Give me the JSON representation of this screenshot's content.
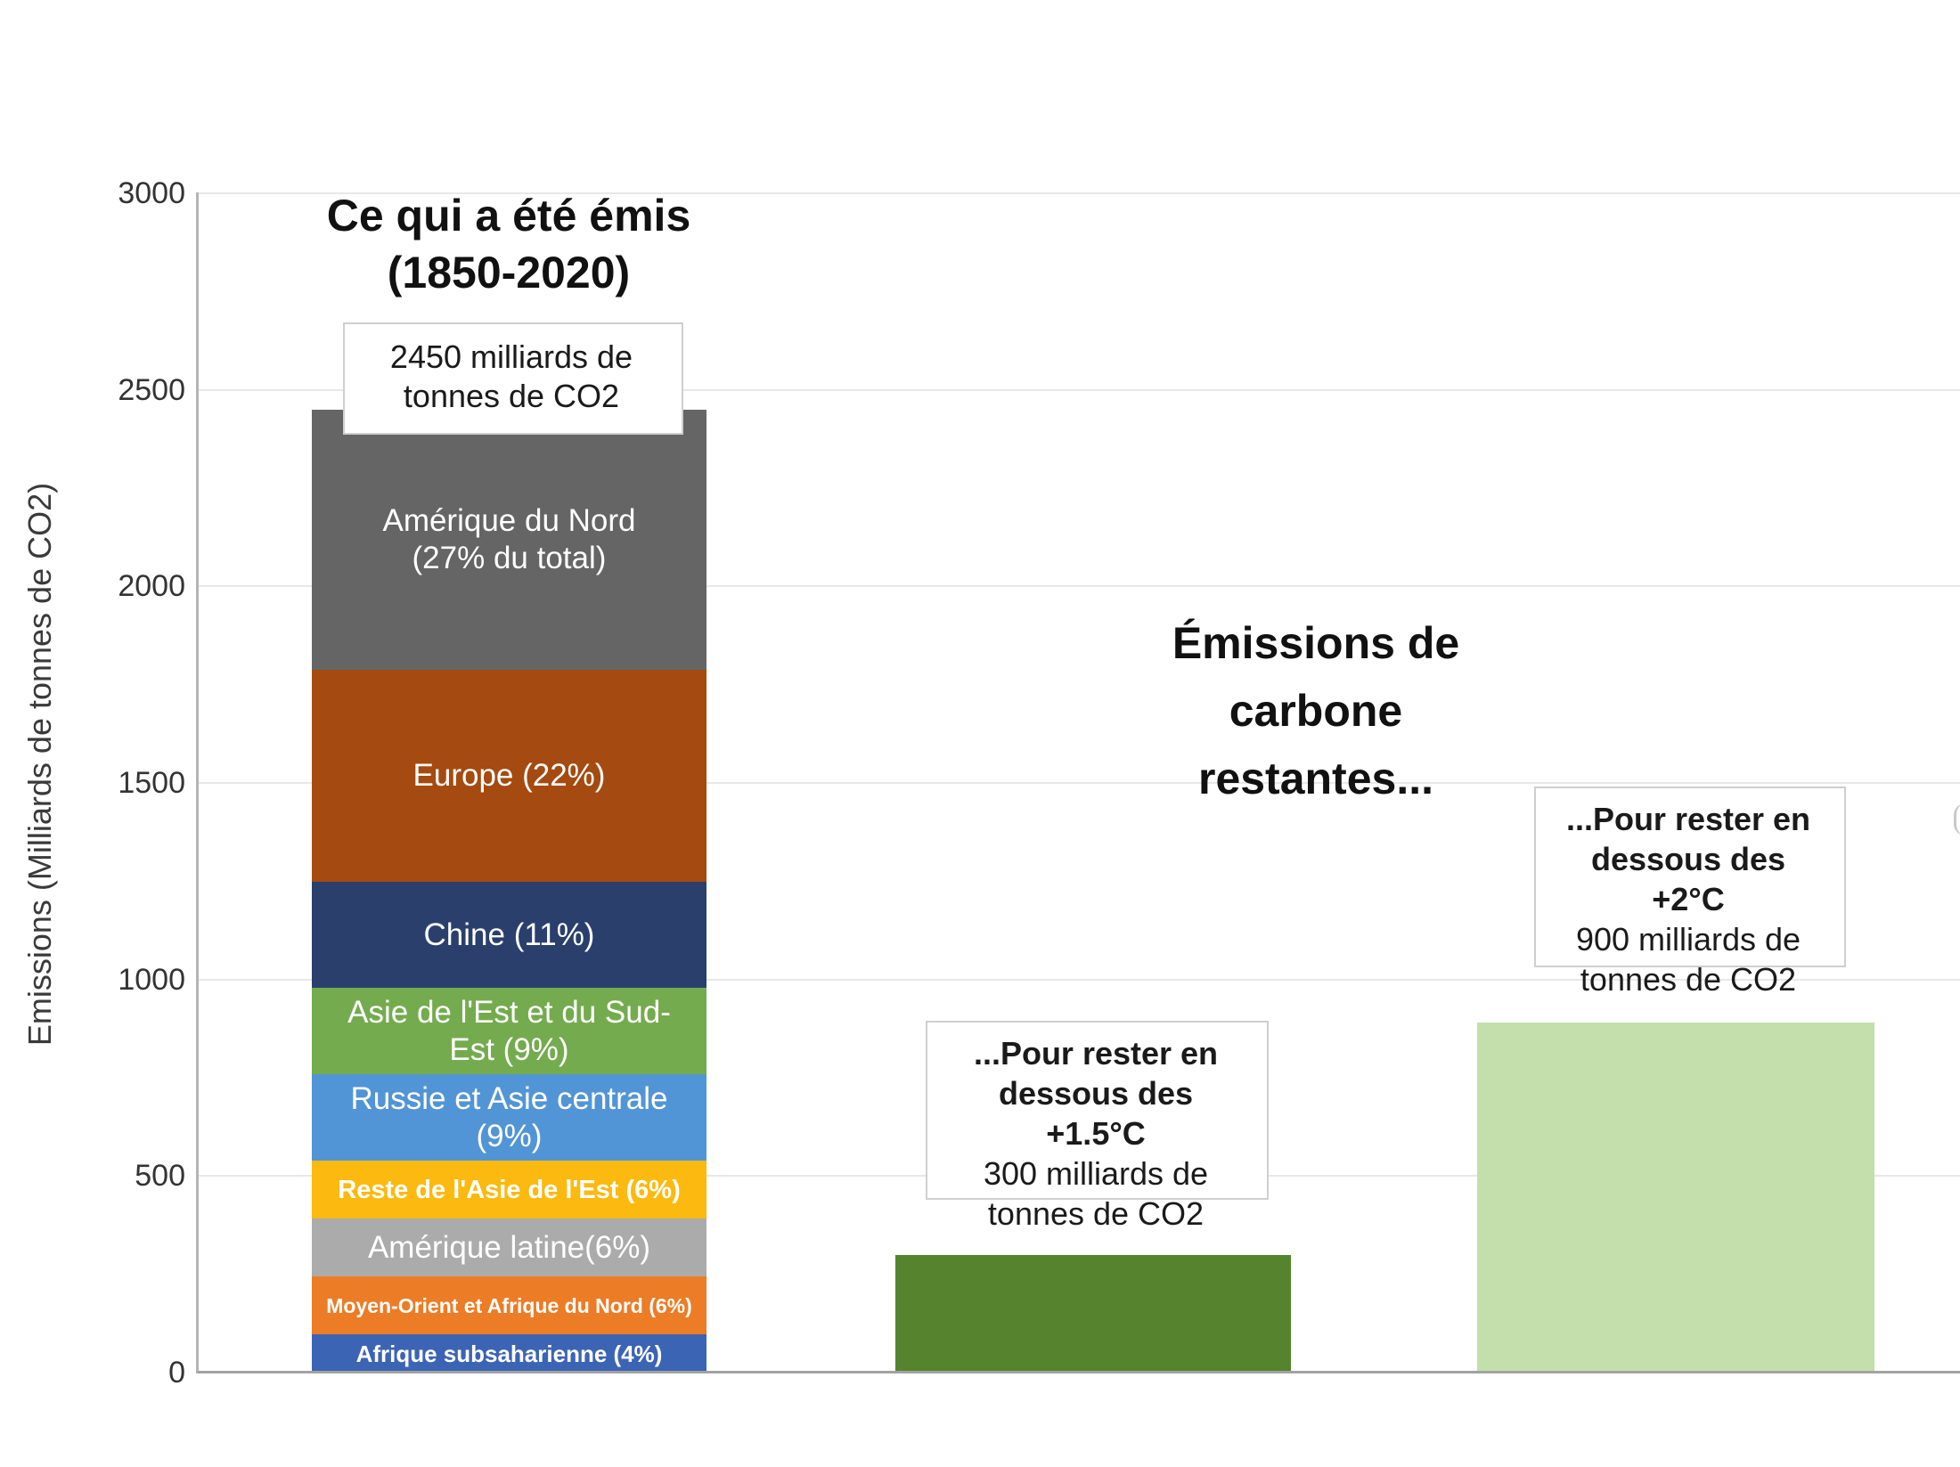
{
  "chart_data": {
    "type": "bar",
    "ylabel": "Emissions (Milliards de tonnes de CO2)",
    "ylim": [
      0,
      3000
    ],
    "yticks": [
      3000,
      2500,
      2000,
      1500,
      1000,
      500,
      0
    ],
    "grid": true,
    "legend_position": "none",
    "center_title": "Émissions de\ncarbone\nrestantes...",
    "bars": [
      {
        "id": "emissions-1850-2020",
        "title": "Ce qui a été émis\n(1850-2020)",
        "note": "2450 milliards de\ntonnes de CO2",
        "total_value": 2450,
        "unit": "milliards de tonnes de CO2",
        "segments": [
          {
            "label": "Amérique du Nord\n(27% du total)",
            "percent": 27,
            "value": 661.5,
            "color": "#656565"
          },
          {
            "label": "Europe (22%)",
            "percent": 22,
            "value": 539,
            "color": "#a54a10"
          },
          {
            "label": "Chine (11%)",
            "percent": 11,
            "value": 269.5,
            "color": "#2b3f6d"
          },
          {
            "label": "Asie de l'Est et du Sud-\nEst (9%)",
            "percent": 9,
            "value": 220.5,
            "color": "#74ab4e"
          },
          {
            "label": "Russie et Asie centrale\n(9%)",
            "percent": 9,
            "value": 220.5,
            "color": "#5295d6"
          },
          {
            "label": "Reste de l'Asie de l'Est (6%)",
            "percent": 6,
            "value": 147,
            "color": "#fcb90f"
          },
          {
            "label": "Amérique latine(6%)",
            "percent": 6,
            "value": 147,
            "color": "#ababab"
          },
          {
            "label": "Moyen-Orient et Afrique du Nord (6%)",
            "percent": 6,
            "value": 147,
            "color": "#ec7c26"
          },
          {
            "label": "Afrique subsaharienne (4%)",
            "percent": 4,
            "value": 98,
            "color": "#3c64b4"
          }
        ]
      },
      {
        "id": "budget-1-5c",
        "value": 300,
        "color": "#55832e",
        "note_bold": "...Pour rester en\ndessous des\n+1.5°C",
        "note_value": "300 milliards de\ntonnes de CO2"
      },
      {
        "id": "budget-2c",
        "value": 900,
        "color": "#c5dfac",
        "note_bold": "...Pour rester en\ndessous des\n+2°C",
        "note_value": "900 milliards de\ntonnes de CO2"
      }
    ]
  }
}
